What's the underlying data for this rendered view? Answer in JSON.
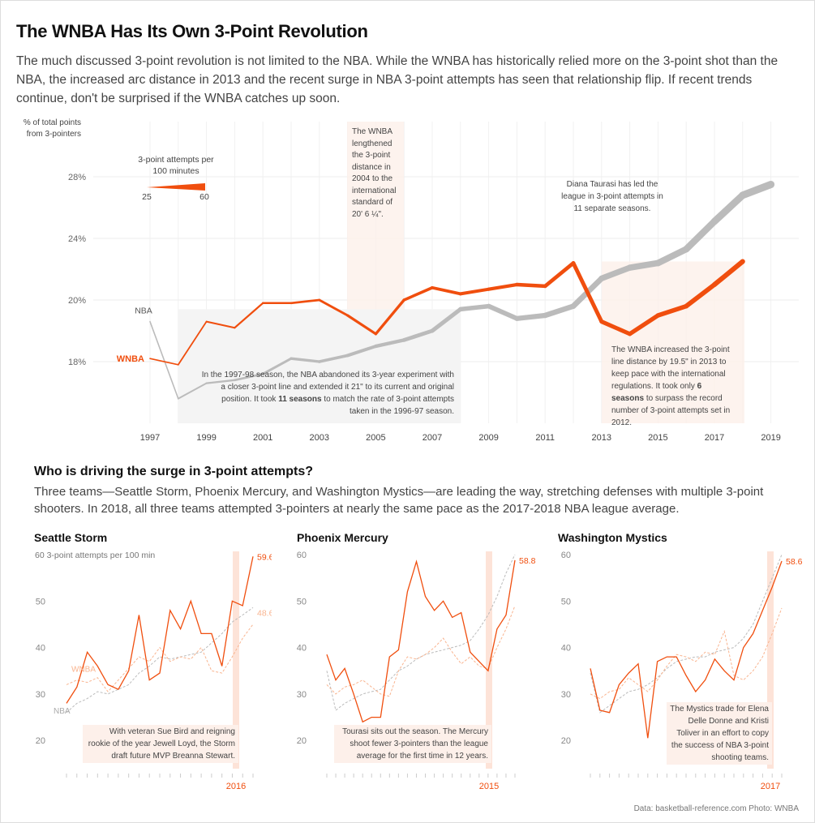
{
  "title": "The WNBA Has Its Own 3-Point Revolution",
  "intro": "The much discussed 3-point revolution is not limited to the NBA. While the WNBA has historically relied more on the 3-point shot than the NBA, the increased arc distance in 2013 and the recent surge in NBA 3-point attempts has seen that relationship flip. If recent trends continue, don't be surprised if the WNBA catches up soon.",
  "section2": {
    "heading": "Who is driving the surge in 3-point attempts?",
    "text": "Three teams—Seattle Storm, Phoenix Mercury, and Washington Mystics—are leading the way, stretching defenses with multiple 3-point shooters. In 2018, all three teams attempted 3-pointers at nearly the same pace as the 2017-2018 NBA league average."
  },
  "source": "Data: basketball-reference.com   Photo: WNBA",
  "colors": {
    "wnba": "#f04e0e",
    "nba": "#bbbbbb",
    "wnba_light": "#f9b48f",
    "shade": "#fdf0ea",
    "grey_shade": "#f4f4f4"
  },
  "chart_data": [
    {
      "type": "line",
      "ylabel_line1": "% of total points",
      "ylabel_line2": "from 3-pointers",
      "y_ticks": [
        "28%",
        "24%",
        "20%",
        "18%"
      ],
      "x_ticks": [
        "1997",
        "1999",
        "2001",
        "2003",
        "2005",
        "2007",
        "2009",
        "2011",
        "2013",
        "2015",
        "2017",
        "2019"
      ],
      "legend": {
        "title_line1": "3-point attempts per",
        "title_line2": "100 minutes",
        "min_label": "25",
        "max_label": "60"
      },
      "series": [
        {
          "name": "NBA",
          "x": [
            1997,
            1998,
            1999,
            2000,
            2001,
            2002,
            2003,
            2004,
            2005,
            2006,
            2007,
            2008,
            2009,
            2010,
            2011,
            2012,
            2013,
            2014,
            2015,
            2016,
            2017,
            2018,
            2019
          ],
          "y": [
            19.3,
            16.8,
            17.3,
            17.4,
            17.6,
            18.1,
            18.0,
            18.2,
            18.5,
            18.7,
            19.0,
            19.7,
            19.8,
            19.4,
            19.5,
            19.8,
            21.4,
            22.1,
            22.4,
            23.3,
            25.1,
            26.8,
            27.5
          ]
        },
        {
          "name": "WNBA",
          "x": [
            1997,
            1998,
            1999,
            2000,
            2001,
            2002,
            2003,
            2004,
            2005,
            2006,
            2007,
            2008,
            2009,
            2010,
            2011,
            2012,
            2013,
            2014,
            2015,
            2016,
            2017,
            2018
          ],
          "y": [
            18.1,
            17.9,
            19.3,
            19.1,
            19.9,
            19.9,
            20.0,
            19.5,
            18.9,
            20.0,
            20.8,
            20.4,
            20.7,
            21.0,
            20.9,
            22.4,
            19.3,
            18.9,
            19.5,
            19.8,
            21.0,
            22.5
          ]
        }
      ],
      "annotations": {
        "wnba_2004": "The WNBA lengthened the 3-point distance in 2004 to the international standard  of 20' 6 ¼\".",
        "taurasi": "Diana Taurasi has led the league in 3-point attempts in 11 separate seasons.",
        "nba_1997": "In the 1997-98 season, the NBA abandoned its 3-year experiment with a closer 3-point line and extended it 21\" to its current and original position. It took",
        "nba_1997_bold": "11 seasons",
        "nba_1997_end": "to match the rate of 3-point attempts taken in the 1996-97 season.",
        "wnba_2013": "The WNBA increased the 3-point line distance by 19.5\" in 2013 to keep pace with the international regulations. It took only",
        "wnba_2013_bold": "6 seasons",
        "wnba_2013_end": "to surpass the record number of 3-point attempts set in 2012."
      }
    },
    {
      "type": "line",
      "team": "Seattle Storm",
      "ylabel": "60 3-point attempts per 100 min",
      "y_ticks": [
        "50",
        "40",
        "30",
        "20"
      ],
      "highlight_year": "2016",
      "end_team_label": "59.6",
      "end_nba_label": "48.6",
      "wnba_label": "WNBA",
      "nba_label": "NBA",
      "note": "With veteran Sue Bird and reigning rookie of the year Jewell Loyd, the Storm draft future MVP Breanna Stewart.",
      "team_values": [
        28.0,
        31.5,
        39.0,
        36.0,
        32.0,
        31.0,
        35.0,
        47.0,
        33.0,
        34.5,
        48.0,
        44.0,
        50.0,
        43.0,
        43.0,
        36.0,
        50.0,
        49.0,
        59.6
      ],
      "wnba_values": [
        32.0,
        33.0,
        32.5,
        33.5,
        30.5,
        33.0,
        35.5,
        38.0,
        37.0,
        40.0,
        37.0,
        38.0,
        37.5,
        40.0,
        35.0,
        34.5,
        38.0,
        42.0,
        45.0
      ],
      "nba_values": [
        26.0,
        28.0,
        29.0,
        30.5,
        30.0,
        31.0,
        32.0,
        34.5,
        36.0,
        38.0,
        37.5,
        38.0,
        38.5,
        39.0,
        41.0,
        43.0,
        45.5,
        47.0,
        48.6
      ]
    },
    {
      "type": "line",
      "team": "Phoenix Mercury",
      "y_ticks": [
        "60",
        "50",
        "40",
        "30",
        "20"
      ],
      "highlight_year": "2015",
      "end_team_label": "58.8",
      "note": "Tourasi sits out the season. The Mercury shoot fewer 3-pointers than the league average for the first time in 12 years.",
      "team_values": [
        38.5,
        33.0,
        35.5,
        30.0,
        24.0,
        25.0,
        25.0,
        38.0,
        39.5,
        52.0,
        58.5,
        51.0,
        48.0,
        50.0,
        46.5,
        47.5,
        39.0,
        37.0,
        35.0,
        44.0,
        47.0,
        58.8
      ],
      "wnba_values": [
        32.0,
        30.0,
        31.5,
        32.0,
        33.0,
        31.5,
        30.0,
        29.5,
        35.0,
        38.0,
        37.5,
        38.5,
        40.0,
        42.0,
        39.0,
        36.5,
        38.0,
        36.0,
        35.5,
        40.0,
        44.0,
        49.0
      ],
      "nba_values": [
        35.0,
        26.5,
        28.0,
        29.0,
        30.0,
        30.5,
        31.0,
        33.0,
        35.0,
        36.0,
        37.5,
        38.5,
        39.0,
        39.5,
        40.0,
        40.5,
        41.5,
        44.0,
        47.0,
        51.0,
        56.0,
        60.0
      ]
    },
    {
      "type": "line",
      "team": "Washington Mystics",
      "y_ticks": [
        "60",
        "50",
        "40",
        "30",
        "20"
      ],
      "highlight_year": "2017",
      "end_team_label": "58.6",
      "note": "The Mystics trade for Elena Delle Donne and Kristi Toliver in an effort to copy the success of NBA 3-point shooting teams.",
      "team_values": [
        35.5,
        26.5,
        26.0,
        32.0,
        34.5,
        36.5,
        20.5,
        37.0,
        38.0,
        38.0,
        34.0,
        30.5,
        33.0,
        37.5,
        35.0,
        33.0,
        40.0,
        43.0,
        48.0,
        53.0,
        58.6
      ],
      "wnba_values": [
        30.0,
        29.0,
        30.5,
        31.0,
        33.5,
        32.0,
        30.5,
        33.0,
        36.0,
        38.5,
        38.0,
        37.0,
        39.0,
        38.5,
        43.5,
        34.0,
        33.0,
        35.0,
        38.0,
        43.0,
        48.5
      ],
      "nba_values": [
        34.5,
        26.0,
        27.5,
        29.0,
        30.5,
        31.0,
        32.0,
        33.5,
        35.5,
        37.0,
        37.5,
        38.0,
        38.0,
        39.0,
        39.5,
        40.0,
        42.0,
        45.0,
        50.0,
        55.0,
        60.0
      ]
    }
  ]
}
